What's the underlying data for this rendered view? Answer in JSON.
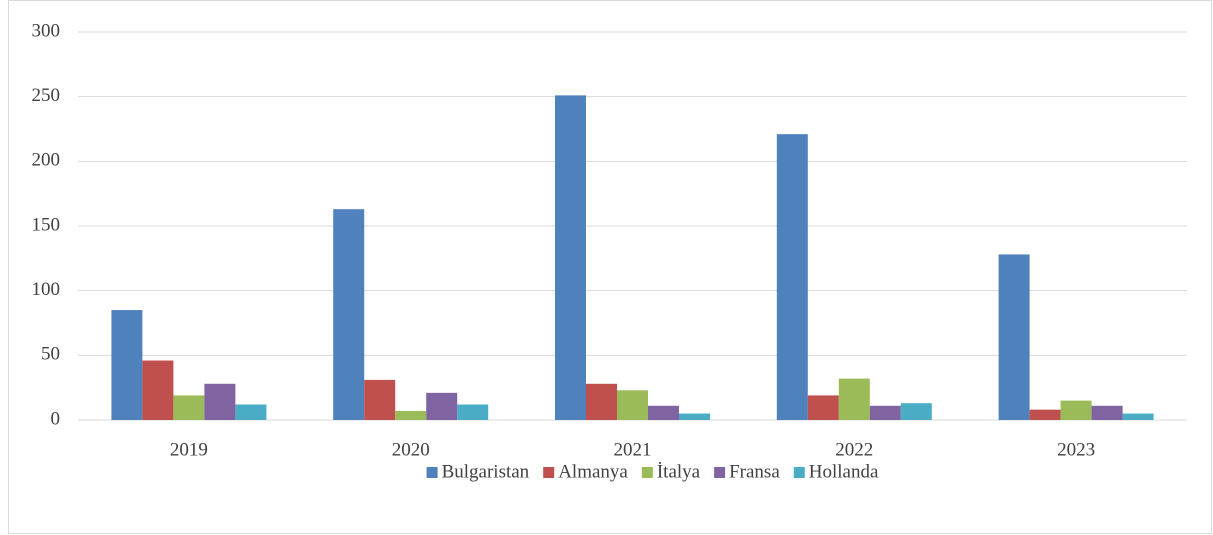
{
  "chart_data": {
    "type": "bar",
    "categories": [
      "2019",
      "2020",
      "2021",
      "2022",
      "2023"
    ],
    "series": [
      {
        "name": "Bulgaristan",
        "color": "#4f81bd",
        "values": [
          85,
          163,
          251,
          221,
          128
        ]
      },
      {
        "name": "Almanya",
        "color": "#c0504d",
        "values": [
          46,
          31,
          28,
          19,
          8
        ]
      },
      {
        "name": "İtalya",
        "color": "#9bbb59",
        "values": [
          19,
          7,
          23,
          32,
          15
        ]
      },
      {
        "name": "Fransa",
        "color": "#8064a2",
        "values": [
          28,
          21,
          11,
          11,
          11
        ]
      },
      {
        "name": "Hollanda",
        "color": "#4bacc6",
        "values": [
          12,
          12,
          5,
          13,
          5
        ]
      }
    ],
    "ylim": [
      0,
      300
    ],
    "yticks": [
      0,
      50,
      100,
      150,
      200,
      250,
      300
    ],
    "grid": true,
    "legend": "bottom"
  }
}
